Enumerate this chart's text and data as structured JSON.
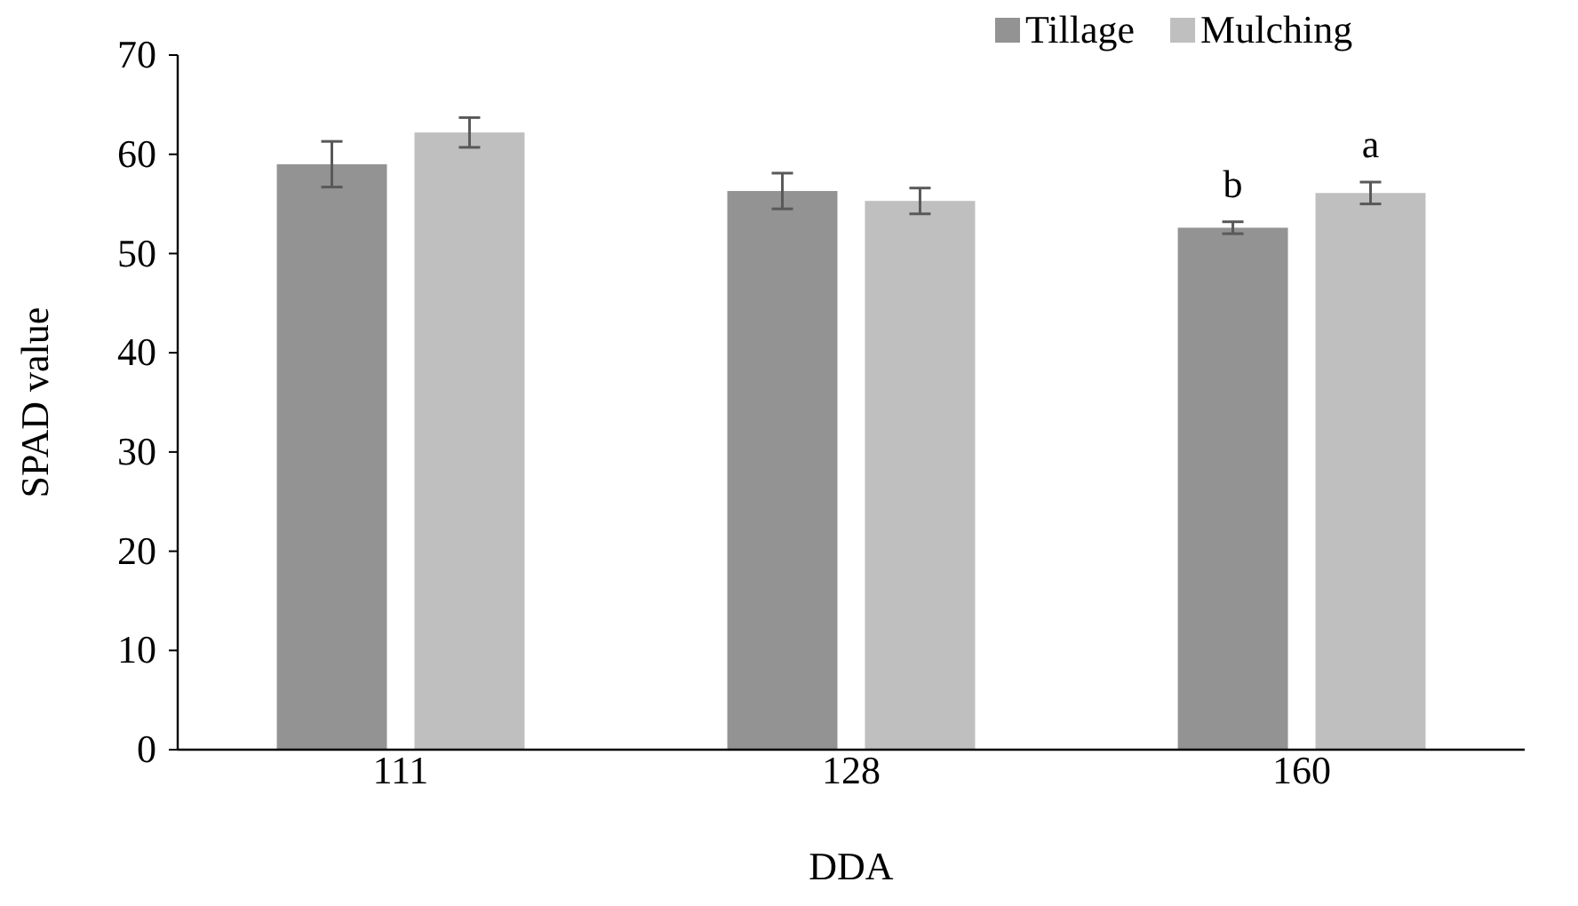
{
  "chart_data": {
    "type": "bar",
    "xlabel": "DDA",
    "ylabel": "SPAD value",
    "categories": [
      "111",
      "128",
      "160"
    ],
    "series": [
      {
        "name": "Tillage",
        "color": "#939393",
        "values": [
          59.0,
          56.3,
          52.6
        ],
        "errors": [
          2.3,
          1.8,
          0.6
        ]
      },
      {
        "name": "Mulching",
        "color": "#bfbfbf",
        "values": [
          62.2,
          55.3,
          56.1
        ],
        "errors": [
          1.5,
          1.3,
          1.1
        ]
      }
    ],
    "ylim": [
      0,
      70
    ],
    "yticks": [
      0,
      10,
      20,
      30,
      40,
      50,
      60,
      70
    ],
    "grid": false,
    "legend": "top right",
    "annotations": [
      "b",
      "a"
    ]
  }
}
